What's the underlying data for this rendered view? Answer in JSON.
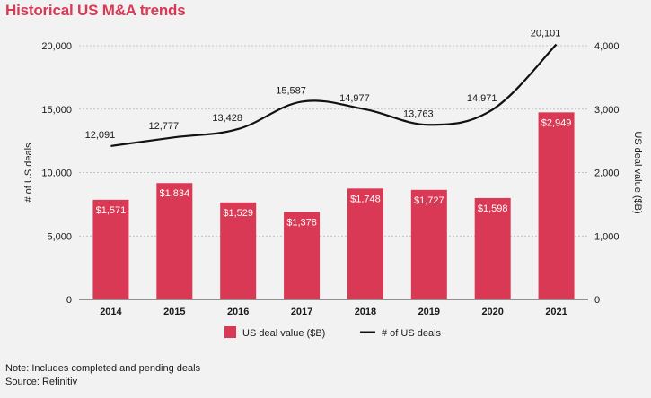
{
  "title": "Historical US M&A trends",
  "note": "Note: Includes completed and pending deals",
  "source": "Source: Refinitiv",
  "chart_data": {
    "type": "bar+line",
    "categories": [
      "2014",
      "2015",
      "2016",
      "2017",
      "2018",
      "2019",
      "2020",
      "2021"
    ],
    "series": [
      {
        "name": "US deal value ($B)",
        "type": "bar",
        "axis": "right",
        "values": [
          1571,
          1834,
          1529,
          1378,
          1748,
          1727,
          1598,
          2949
        ],
        "labels": [
          "$1,571",
          "$1,834",
          "$1,529",
          "$1,378",
          "$1,748",
          "$1,727",
          "$1,598",
          "$2,949"
        ],
        "color": "#d93954"
      },
      {
        "name": "# of US deals",
        "type": "line",
        "axis": "left",
        "values": [
          12091,
          12777,
          13428,
          15587,
          14977,
          13763,
          14971,
          20101
        ],
        "labels": [
          "12,091",
          "12,777",
          "13,428",
          "15,587",
          "14,977",
          "13,763",
          "14,971",
          "20,101"
        ],
        "color": "#111111"
      }
    ],
    "yleft": {
      "label": "# of US deals",
      "range": [
        0,
        20000
      ],
      "ticks": [
        0,
        5000,
        10000,
        15000,
        20000
      ],
      "tick_labels": [
        "0",
        "5,000",
        "10,000",
        "15,000",
        "20,000"
      ]
    },
    "yright": {
      "label": "US deal value ($B)",
      "range": [
        0,
        4000
      ],
      "ticks": [
        0,
        1000,
        2000,
        3000,
        4000
      ],
      "tick_labels": [
        "0",
        "1,000",
        "2,000",
        "3,000",
        "4,000"
      ]
    },
    "grid": true,
    "legend_position": "bottom"
  }
}
